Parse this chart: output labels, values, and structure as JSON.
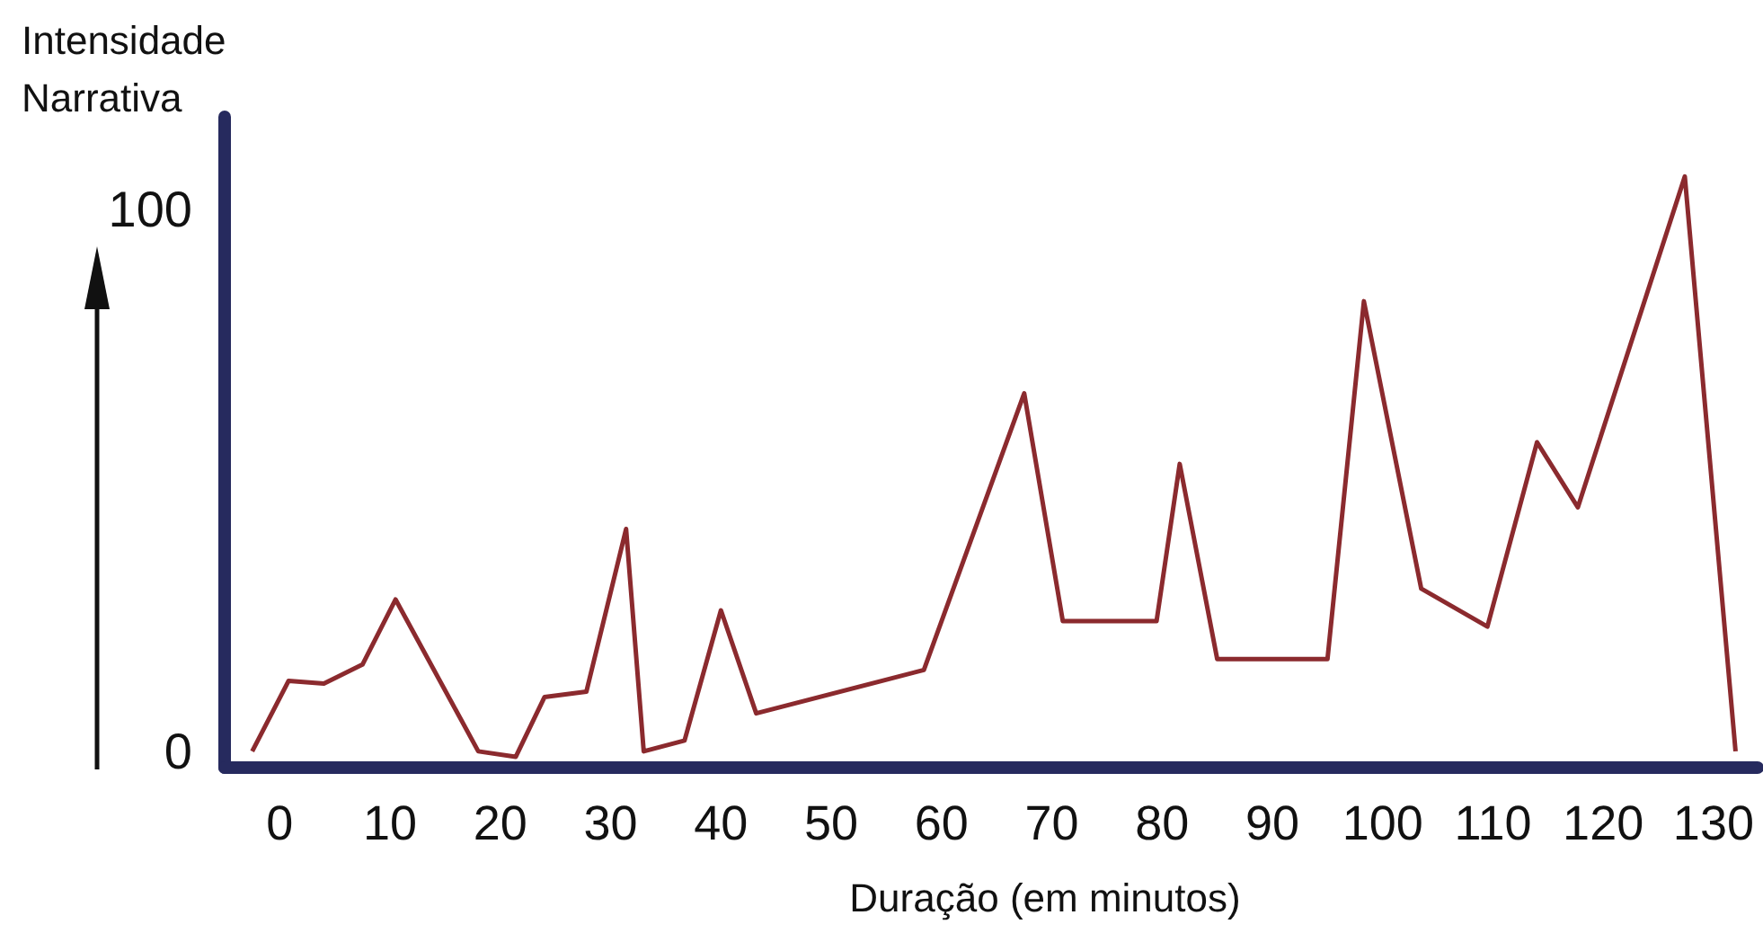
{
  "chart_data": {
    "type": "line",
    "xlabel": "Duração (em minutos)",
    "ylabel": "Intensidade Narrativa",
    "xlim": [
      -5,
      134
    ],
    "xticks": [
      0,
      10,
      20,
      30,
      40,
      50,
      60,
      70,
      80,
      90,
      100,
      110,
      120,
      130
    ],
    "ylim": [
      -3,
      117
    ],
    "yticks": [
      0,
      100
    ],
    "grid": false,
    "marker": "none",
    "line_style": "solid",
    "series": [
      {
        "color": "#8b2a2e",
        "x": [
          -2.5,
          0.8,
          4,
          7.5,
          10.5,
          18,
          21.4,
          24,
          27.8,
          31.4,
          33,
          36.7,
          40,
          43.2,
          58.4,
          67.5,
          71,
          79.5,
          81.6,
          85,
          95,
          98.3,
          103.5,
          109.5,
          114,
          117.7,
          127.4,
          132
        ],
        "values": [
          0,
          13,
          12.5,
          16,
          28,
          0,
          -1,
          10,
          11,
          41,
          0,
          2,
          26,
          7,
          15,
          66,
          24,
          24,
          53,
          17,
          17,
          83,
          30,
          23,
          57,
          45,
          106,
          0
        ]
      }
    ]
  }
}
